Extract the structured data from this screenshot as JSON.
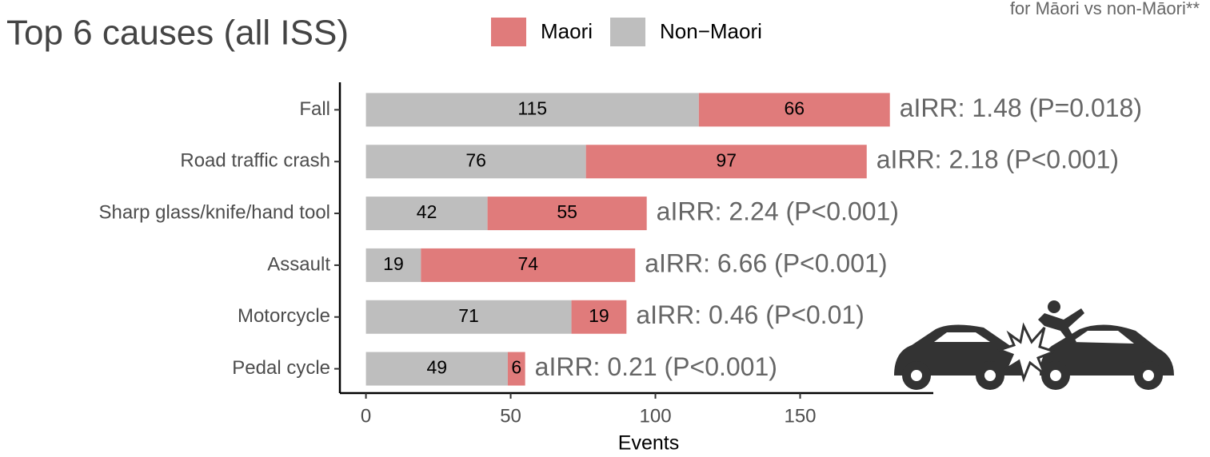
{
  "chart_data": {
    "type": "stacked-bar",
    "orientation": "horizontal",
    "title": "Top 6 causes (all ISS)",
    "subtitle": "for Māori vs non-Māori**",
    "categories": [
      "Fall",
      "Road traffic crash",
      "Sharp glass/knife/hand tool",
      "Assault",
      "Motorcycle",
      "Pedal cycle"
    ],
    "series": [
      {
        "name": "Maori",
        "color": "#e07b7b",
        "values": [
          66,
          97,
          55,
          74,
          19,
          6
        ]
      },
      {
        "name": "Non−Maori",
        "color": "#bebebe",
        "values": [
          115,
          76,
          42,
          19,
          71,
          49
        ]
      }
    ],
    "annotations": [
      "aIRR: 1.48 (P=0.018)",
      "aIRR: 2.18 (P<0.001)",
      "aIRR: 2.24 (P<0.001)",
      "aIRR: 6.66 (P<0.001)",
      "aIRR: 0.46 (P<0.01)",
      "aIRR: 0.21 (P<0.001)"
    ],
    "xlabel": "Events",
    "xlim": [
      -9,
      196
    ],
    "xticks": [
      0,
      50,
      100,
      150
    ],
    "legend": "top"
  }
}
